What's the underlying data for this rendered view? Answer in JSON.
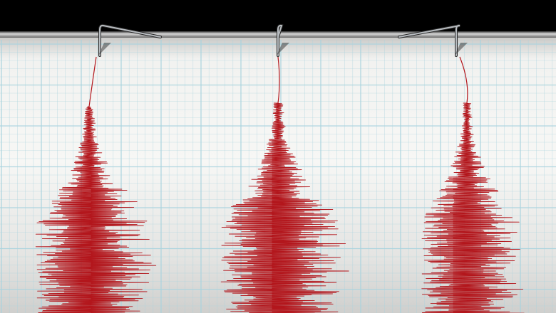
{
  "colors": {
    "background": "#000000",
    "paper": "#f4f4f2",
    "grid_line": "#a9d3de",
    "trace": "#b3161c",
    "needle": "#b8bcc0"
  },
  "icons": [
    "seismograph-needle-icon"
  ],
  "traces": 3
}
